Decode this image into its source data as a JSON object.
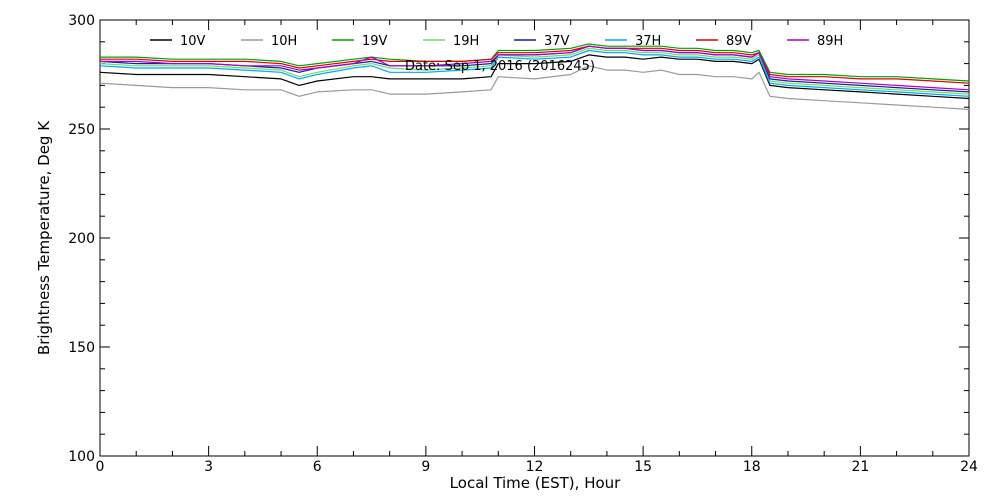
{
  "chart_data": {
    "type": "line",
    "title": "",
    "annotation": "Date: Sep  1, 2016 (2016245)",
    "xlabel": "Local Time (EST), Hour",
    "ylabel": "Brightness Temperature, Deg  K",
    "xlim": [
      0,
      24
    ],
    "ylim": [
      100,
      300
    ],
    "x_ticks": [
      0,
      3,
      6,
      9,
      12,
      15,
      18,
      21,
      24
    ],
    "x_tick_labels": [
      "0",
      "3",
      "6",
      "9",
      "12",
      "15",
      "18",
      "21",
      "24"
    ],
    "y_ticks": [
      100,
      150,
      200,
      250,
      300
    ],
    "y_tick_labels": [
      "100",
      "150",
      "200",
      "250",
      "300"
    ],
    "x_minor_step": 1,
    "y_minor_step": 10,
    "grid": false,
    "legend_placement": "top-inside",
    "x": [
      0,
      1,
      2,
      3,
      4,
      5,
      5.5,
      6,
      7,
      7.5,
      8,
      9,
      10,
      10.8,
      11,
      12,
      13,
      13.5,
      14,
      14.5,
      15,
      15.5,
      16,
      16.5,
      17,
      17.5,
      18,
      18.2,
      18.5,
      19,
      20,
      21,
      22,
      23,
      24
    ],
    "series": [
      {
        "name": "10V",
        "color": "#000000",
        "values": [
          276,
          275,
          275,
          275,
          274,
          273,
          270,
          272,
          274,
          274,
          273,
          273,
          273,
          274,
          280,
          280,
          281,
          284,
          283,
          283,
          282,
          283,
          282,
          282,
          281,
          281,
          280,
          282,
          270,
          269,
          268,
          267,
          266,
          265,
          264
        ]
      },
      {
        "name": "10H",
        "color": "#9a9a9a",
        "values": [
          271,
          270,
          269,
          269,
          268,
          268,
          265,
          267,
          268,
          268,
          266,
          266,
          267,
          268,
          274,
          273,
          275,
          279,
          277,
          277,
          276,
          277,
          275,
          275,
          274,
          274,
          273,
          276,
          265,
          264,
          263,
          262,
          261,
          260,
          259
        ]
      },
      {
        "name": "19V",
        "color": "#00a000",
        "values": [
          283,
          283,
          282,
          282,
          282,
          281,
          279,
          280,
          282,
          283,
          282,
          281,
          281,
          282,
          286,
          286,
          287,
          289,
          288,
          288,
          288,
          288,
          287,
          287,
          286,
          286,
          285,
          286,
          276,
          275,
          275,
          274,
          274,
          273,
          272
        ]
      },
      {
        "name": "19H",
        "color": "#66e066",
        "values": [
          280,
          279,
          279,
          279,
          278,
          277,
          274,
          276,
          279,
          280,
          278,
          277,
          278,
          279,
          284,
          283,
          284,
          287,
          286,
          286,
          285,
          285,
          284,
          284,
          283,
          283,
          282,
          284,
          272,
          271,
          270,
          269,
          268,
          267,
          266
        ]
      },
      {
        "name": "37V",
        "color": "#1a1a9a",
        "values": [
          281,
          280,
          280,
          280,
          279,
          278,
          276,
          278,
          280,
          281,
          279,
          279,
          279,
          280,
          284,
          284,
          285,
          288,
          287,
          287,
          286,
          286,
          285,
          285,
          284,
          284,
          283,
          285,
          273,
          272,
          271,
          270,
          269,
          268,
          267
        ]
      },
      {
        "name": "37H",
        "color": "#00aaee",
        "values": [
          279,
          278,
          278,
          278,
          277,
          276,
          273,
          275,
          278,
          279,
          276,
          276,
          277,
          278,
          283,
          282,
          283,
          286,
          285,
          285,
          284,
          284,
          283,
          283,
          282,
          282,
          281,
          283,
          271,
          270,
          269,
          268,
          267,
          266,
          265
        ]
      },
      {
        "name": "89V",
        "color": "#dd0000",
        "values": [
          282,
          282,
          281,
          281,
          281,
          280,
          278,
          279,
          281,
          282,
          281,
          281,
          281,
          282,
          285,
          285,
          286,
          288,
          287,
          287,
          287,
          287,
          286,
          286,
          285,
          285,
          284,
          285,
          275,
          274,
          274,
          273,
          273,
          272,
          271
        ]
      },
      {
        "name": "89H",
        "color": "#aa00cc",
        "values": [
          281,
          281,
          280,
          280,
          279,
          279,
          277,
          278,
          280,
          283,
          279,
          279,
          280,
          281,
          284,
          284,
          285,
          288,
          287,
          287,
          286,
          286,
          285,
          285,
          284,
          284,
          283,
          285,
          274,
          273,
          272,
          271,
          270,
          269,
          268
        ]
      }
    ]
  }
}
